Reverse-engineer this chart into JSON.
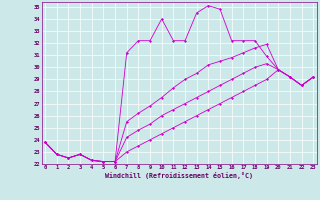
{
  "background_color": "#cce8e8",
  "line_color": "#cc00cc",
  "xlim": [
    -0.3,
    23.3
  ],
  "ylim": [
    22,
    35.4
  ],
  "xticks": [
    0,
    1,
    2,
    3,
    4,
    5,
    6,
    7,
    8,
    9,
    10,
    11,
    12,
    13,
    14,
    15,
    16,
    17,
    18,
    19,
    20,
    21,
    22,
    23
  ],
  "yticks": [
    22,
    23,
    24,
    25,
    26,
    27,
    28,
    29,
    30,
    31,
    32,
    33,
    34,
    35
  ],
  "xlabel": "Windchill (Refroidissement éolien,°C)",
  "lines": [
    [
      23.8,
      22.8,
      22.5,
      22.8,
      22.3,
      22.2,
      22.2,
      31.2,
      32.2,
      32.2,
      34.0,
      32.2,
      32.2,
      34.5,
      35.1,
      34.8,
      32.2,
      32.2,
      32.2,
      30.9,
      29.8,
      29.2,
      28.5,
      29.2
    ],
    [
      23.8,
      22.8,
      22.5,
      22.8,
      22.3,
      22.2,
      22.2,
      25.5,
      26.2,
      26.8,
      27.5,
      28.3,
      29.0,
      29.5,
      30.2,
      30.5,
      30.8,
      31.2,
      31.6,
      31.9,
      29.8,
      29.2,
      28.5,
      29.2
    ],
    [
      23.8,
      22.8,
      22.5,
      22.8,
      22.3,
      22.2,
      22.2,
      24.2,
      24.8,
      25.3,
      26.0,
      26.5,
      27.0,
      27.5,
      28.0,
      28.5,
      29.0,
      29.5,
      30.0,
      30.3,
      29.8,
      29.2,
      28.5,
      29.2
    ],
    [
      23.8,
      22.8,
      22.5,
      22.8,
      22.3,
      22.2,
      22.2,
      23.0,
      23.5,
      24.0,
      24.5,
      25.0,
      25.5,
      26.0,
      26.5,
      27.0,
      27.5,
      28.0,
      28.5,
      29.0,
      29.8,
      29.2,
      28.5,
      29.2
    ]
  ],
  "tick_fontsize": 4.0,
  "xlabel_fontsize": 4.8,
  "line_width": 0.6,
  "marker_size": 1.5
}
